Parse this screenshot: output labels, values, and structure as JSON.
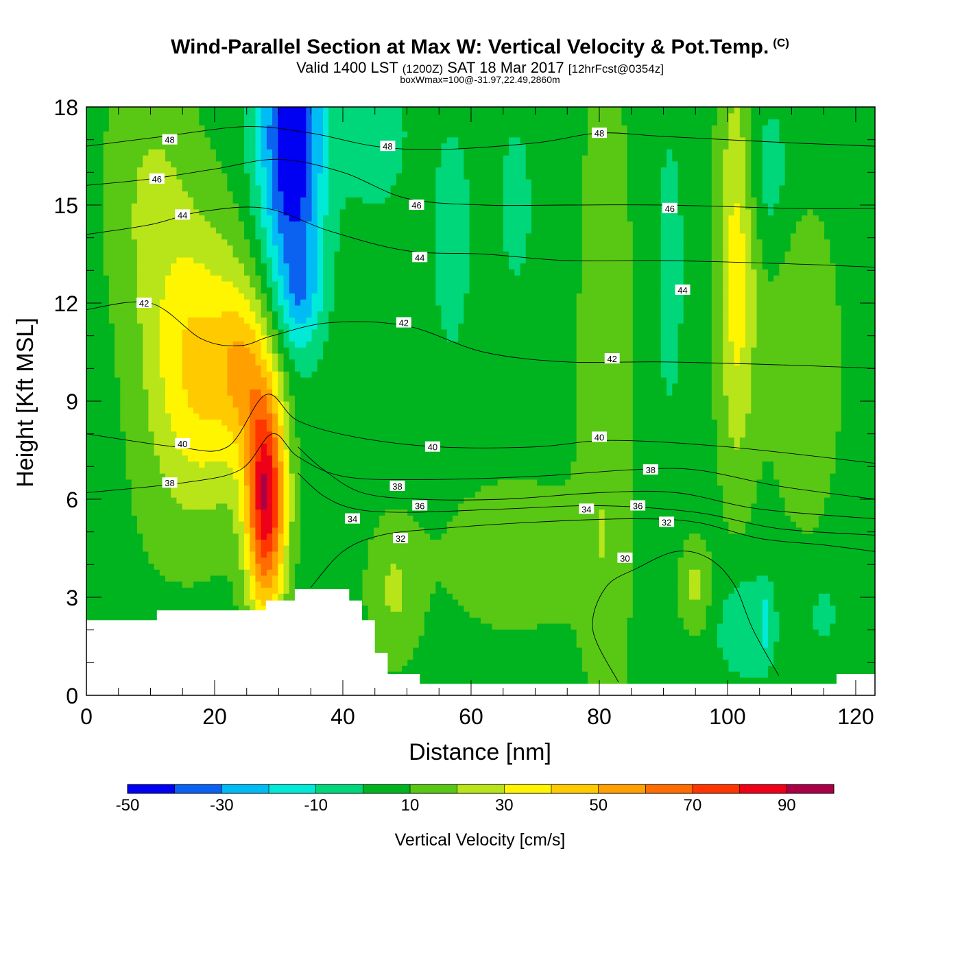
{
  "title": {
    "main": "Wind-Parallel Section at Max W: Vertical Velocity & Pot.Temp.",
    "copyright": "(C)",
    "valid_prefix": "Valid 1400 LST",
    "valid_utc": "(1200Z)",
    "valid_date": "SAT 18 Mar 2017",
    "forecast": "[12hrFcst@0354z]",
    "box_info": "boxWmax=100@-31.97,22.49,2860m"
  },
  "chart_data": {
    "type": "heatmap",
    "xlabel": "Distance [nm]",
    "ylabel": "Height [Kft MSL]",
    "xlim": [
      0,
      123
    ],
    "ylim": [
      0,
      18
    ],
    "x_ticks": [
      0,
      20,
      40,
      60,
      80,
      100,
      120
    ],
    "y_ticks": [
      0,
      3,
      6,
      9,
      12,
      15,
      18
    ],
    "colorbar": {
      "title": "Vertical Velocity [cm/s]",
      "tick_labels": [
        "-50",
        "-30",
        "-10",
        "10",
        "30",
        "50",
        "70",
        "90"
      ],
      "bounds": [
        -50,
        -40,
        -30,
        -20,
        -10,
        0,
        10,
        20,
        30,
        40,
        50,
        60,
        70,
        80,
        90,
        100
      ],
      "colors": [
        "#0000f2",
        "#0b61f0",
        "#00bcf5",
        "#00ead7",
        "#00d77a",
        "#00b420",
        "#58c814",
        "#b8e41a",
        "#fff500",
        "#ffca00",
        "#ffa000",
        "#ff6c00",
        "#ff3600",
        "#ee0016",
        "#aa0046"
      ]
    },
    "background_w": 5,
    "terrain": [
      [
        0,
        2.3
      ],
      [
        11,
        2.3
      ],
      [
        11,
        2.6
      ],
      [
        28,
        2.6
      ],
      [
        28,
        2.9
      ],
      [
        32.5,
        2.9
      ],
      [
        32.5,
        3.25
      ],
      [
        41,
        3.25
      ],
      [
        41,
        2.9
      ],
      [
        43,
        2.9
      ],
      [
        43,
        2.3
      ],
      [
        45,
        2.3
      ],
      [
        45,
        1.3
      ],
      [
        47,
        1.3
      ],
      [
        47,
        0.65
      ],
      [
        52,
        0.65
      ],
      [
        52,
        0.35
      ],
      [
        117,
        0.35
      ],
      [
        117,
        0.65
      ],
      [
        123,
        0.65
      ]
    ],
    "w_features": [
      {
        "x": 10,
        "y": 15.5,
        "sx": 5,
        "sy": 3,
        "w": 15
      },
      {
        "x": 12,
        "y": 5,
        "sx": 6,
        "sy": 2.2,
        "w": 3
      },
      {
        "x": 18,
        "y": 10,
        "sx": 6,
        "sy": 3,
        "w": 38
      },
      {
        "x": 24.5,
        "y": 10,
        "sx": 2.5,
        "sy": 1.7,
        "w": 24
      },
      {
        "x": 28,
        "y": 6,
        "sx": 2.2,
        "sy": 2.5,
        "w": 82
      },
      {
        "x": 32,
        "y": 17,
        "sx": 3.5,
        "sy": 3.3,
        "w": -58
      },
      {
        "x": 33.5,
        "y": 12.2,
        "sx": 2.2,
        "sy": 1.2,
        "w": -20
      },
      {
        "x": 45,
        "y": 17.2,
        "sx": 3.5,
        "sy": 1.6,
        "w": -12
      },
      {
        "x": 57,
        "y": 14,
        "sx": 2.2,
        "sy": 2.5,
        "w": -11
      },
      {
        "x": 67,
        "y": 15,
        "sx": 1.8,
        "sy": 1.8,
        "w": -10
      },
      {
        "x": 81,
        "y": 9,
        "sx": 3,
        "sy": 8,
        "w": 14
      },
      {
        "x": 91,
        "y": 13,
        "sx": 1.5,
        "sy": 3,
        "w": -11
      },
      {
        "x": 101.5,
        "y": 13,
        "sx": 2.2,
        "sy": 4.5,
        "w": 30
      },
      {
        "x": 106,
        "y": 16,
        "sx": 2.5,
        "sy": 1.5,
        "w": -13
      },
      {
        "x": 112,
        "y": 10,
        "sx": 4,
        "sy": 3.5,
        "w": 14
      },
      {
        "x": 103,
        "y": 2.2,
        "sx": 3.5,
        "sy": 1.2,
        "w": -14
      },
      {
        "x": 106,
        "y": 2.2,
        "sx": 0.6,
        "sy": 0.7,
        "w": -15
      },
      {
        "x": 115,
        "y": 2.5,
        "sx": 1.5,
        "sy": 0.7,
        "w": -10
      },
      {
        "x": 67,
        "y": 4.3,
        "sx": 8,
        "sy": 1.6,
        "w": 14
      },
      {
        "x": 48,
        "y": 3.2,
        "sx": 3,
        "sy": 1.6,
        "w": 16
      },
      {
        "x": 95,
        "y": 3.3,
        "sx": 1.8,
        "sy": 1,
        "w": 18
      }
    ],
    "theta_isolines": [
      {
        "label": "30",
        "points": [
          [
            83,
            0.4
          ],
          [
            79,
            2.0
          ],
          [
            81,
            3.3
          ],
          [
            86,
            3.9
          ],
          [
            92,
            4.4
          ],
          [
            97,
            4.2
          ],
          [
            101,
            3.4
          ],
          [
            104,
            2.0
          ],
          [
            108,
            0.6
          ]
        ]
      },
      {
        "label": "32",
        "points": [
          [
            35,
            3.3
          ],
          [
            40,
            4.4
          ],
          [
            46,
            4.9
          ],
          [
            55,
            5.1
          ],
          [
            70,
            5.3
          ],
          [
            85,
            5.4
          ],
          [
            95,
            5.3
          ],
          [
            105,
            4.8
          ],
          [
            115,
            4.6
          ],
          [
            123,
            4.4
          ]
        ]
      },
      {
        "label": "34",
        "points": [
          [
            33,
            6.8
          ],
          [
            37,
            6.1
          ],
          [
            42,
            5.7
          ],
          [
            50,
            5.6
          ],
          [
            65,
            5.7
          ],
          [
            80,
            5.8
          ],
          [
            95,
            5.6
          ],
          [
            108,
            5.1
          ],
          [
            123,
            4.9
          ]
        ]
      },
      {
        "label": "36",
        "points": [
          [
            33,
            7.6
          ],
          [
            37,
            6.9
          ],
          [
            43,
            6.2
          ],
          [
            52,
            6.0
          ],
          [
            65,
            6.0
          ],
          [
            80,
            6.2
          ],
          [
            92,
            6.2
          ],
          [
            105,
            5.7
          ],
          [
            123,
            5.4
          ]
        ]
      },
      {
        "label": "38",
        "points": [
          [
            0,
            6.2
          ],
          [
            15,
            6.5
          ],
          [
            24,
            6.9
          ],
          [
            29,
            8.0
          ],
          [
            33,
            7.3
          ],
          [
            40,
            6.7
          ],
          [
            52,
            6.6
          ],
          [
            70,
            6.7
          ],
          [
            85,
            6.9
          ],
          [
            95,
            6.9
          ],
          [
            108,
            6.4
          ],
          [
            123,
            6.0
          ]
        ]
      },
      {
        "label": "40",
        "points": [
          [
            0,
            8.0
          ],
          [
            14,
            7.6
          ],
          [
            22,
            7.6
          ],
          [
            28,
            9.2
          ],
          [
            33,
            8.4
          ],
          [
            42,
            7.9
          ],
          [
            55,
            7.6
          ],
          [
            70,
            7.6
          ],
          [
            82,
            7.8
          ],
          [
            100,
            7.6
          ],
          [
            123,
            7.1
          ]
        ]
      },
      {
        "label": "42",
        "points": [
          [
            0,
            11.8
          ],
          [
            10,
            12.0
          ],
          [
            18,
            10.9
          ],
          [
            24,
            10.7
          ],
          [
            29,
            11.0
          ],
          [
            38,
            11.4
          ],
          [
            50,
            11.3
          ],
          [
            62,
            10.5
          ],
          [
            75,
            10.2
          ],
          [
            90,
            10.2
          ],
          [
            110,
            10.1
          ],
          [
            123,
            10.0
          ]
        ]
      },
      {
        "label": "44",
        "points": [
          [
            0,
            14.1
          ],
          [
            10,
            14.4
          ],
          [
            18,
            14.8
          ],
          [
            28,
            14.9
          ],
          [
            38,
            14.2
          ],
          [
            50,
            13.6
          ],
          [
            62,
            13.5
          ],
          [
            75,
            13.3
          ],
          [
            90,
            13.3
          ],
          [
            110,
            13.2
          ],
          [
            123,
            13.1
          ]
        ]
      },
      {
        "label": "46",
        "points": [
          [
            0,
            15.6
          ],
          [
            10,
            15.8
          ],
          [
            20,
            16.1
          ],
          [
            30,
            16.4
          ],
          [
            40,
            16.0
          ],
          [
            50,
            15.2
          ],
          [
            62,
            15.0
          ],
          [
            75,
            15.0
          ],
          [
            90,
            15.0
          ],
          [
            110,
            14.9
          ],
          [
            123,
            14.9
          ]
        ]
      },
      {
        "label": "48",
        "points": [
          [
            0,
            16.8
          ],
          [
            12,
            17.1
          ],
          [
            25,
            17.4
          ],
          [
            35,
            17.2
          ],
          [
            45,
            16.8
          ],
          [
            55,
            16.7
          ],
          [
            70,
            16.9
          ],
          [
            80,
            17.2
          ],
          [
            90,
            17.1
          ],
          [
            110,
            16.9
          ],
          [
            123,
            16.8
          ]
        ]
      }
    ],
    "theta_labels": [
      {
        "text": "48",
        "x": 13,
        "y": 17.0
      },
      {
        "text": "48",
        "x": 47,
        "y": 16.8
      },
      {
        "text": "48",
        "x": 80,
        "y": 17.2
      },
      {
        "text": "46",
        "x": 11,
        "y": 15.8
      },
      {
        "text": "46",
        "x": 51.5,
        "y": 15.0
      },
      {
        "text": "46",
        "x": 91,
        "y": 14.9
      },
      {
        "text": "44",
        "x": 15,
        "y": 14.7
      },
      {
        "text": "44",
        "x": 52,
        "y": 13.4
      },
      {
        "text": "44",
        "x": 93,
        "y": 12.4
      },
      {
        "text": "42",
        "x": 9,
        "y": 12.0
      },
      {
        "text": "42",
        "x": 49.5,
        "y": 11.4
      },
      {
        "text": "42",
        "x": 82,
        "y": 10.3
      },
      {
        "text": "40",
        "x": 15,
        "y": 7.7
      },
      {
        "text": "40",
        "x": 54,
        "y": 7.6
      },
      {
        "text": "40",
        "x": 80,
        "y": 7.9
      },
      {
        "text": "38",
        "x": 13,
        "y": 6.5
      },
      {
        "text": "38",
        "x": 48.5,
        "y": 6.4
      },
      {
        "text": "38",
        "x": 88,
        "y": 6.9
      },
      {
        "text": "36",
        "x": 52,
        "y": 5.8
      },
      {
        "text": "36",
        "x": 86,
        "y": 5.8
      },
      {
        "text": "34",
        "x": 41.5,
        "y": 5.4
      },
      {
        "text": "34",
        "x": 78,
        "y": 5.7
      },
      {
        "text": "32",
        "x": 49,
        "y": 4.8
      },
      {
        "text": "32",
        "x": 90.5,
        "y": 5.3
      },
      {
        "text": "30",
        "x": 84,
        "y": 4.2
      }
    ]
  }
}
